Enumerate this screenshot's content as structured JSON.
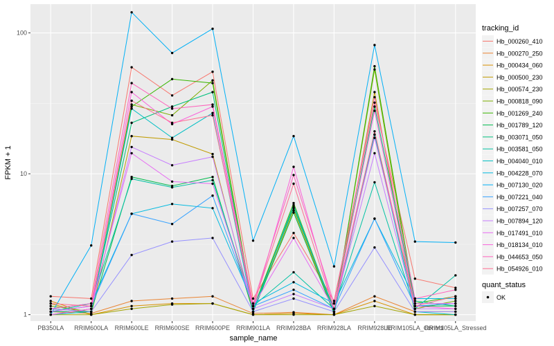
{
  "chart_data": {
    "type": "line",
    "xlabel": "sample_name",
    "ylabel": "FPKM + 1",
    "y_scale": "log10",
    "ylim": [
      0.9,
      160
    ],
    "y_ticks": [
      1,
      10,
      100
    ],
    "y_tick_labels": [
      "1",
      "10",
      "100"
    ],
    "categories": [
      "PB350LA",
      "RRIM600LA",
      "RRIM600LE",
      "RRIM600SE",
      "RRIM600PE",
      "RRIM901LA",
      "RRIM928BA",
      "RRIM928LA",
      "RRIM928LE",
      "RRIM105LA_Control",
      "RRIM105LA_Stressed"
    ],
    "category_labels": [
      "PB350LA",
      "RRIM600LA",
      "RRIM600LE",
      "RRIM600SE",
      "RRIM600PE",
      "RRIM901LA",
      "RRIM928BA",
      "RRIM928LA",
      "RRIM928LE",
      "RRIM105LA_Control",
      "RRIM105LA_Stressed"
    ],
    "legend": {
      "title": "tracking_id",
      "position": "right"
    },
    "series": [
      {
        "name": "Hb_000260_410",
        "color": "#F8766D",
        "values": [
          1.35,
          1.3,
          57,
          36,
          53,
          1.3,
          3.8,
          1.25,
          32,
          1.8,
          1.55
        ]
      },
      {
        "name": "Hb_000270_250",
        "color": "#EA8331",
        "values": [
          1.05,
          1.02,
          1.25,
          1.3,
          1.35,
          1.02,
          1.04,
          1.0,
          1.35,
          1.05,
          1.05
        ]
      },
      {
        "name": "Hb_000434_060",
        "color": "#D89000",
        "values": [
          1.25,
          1.0,
          1.15,
          1.2,
          1.2,
          1.0,
          1.02,
          1.0,
          1.25,
          1.0,
          1.0
        ]
      },
      {
        "name": "Hb_000500_230",
        "color": "#C09B00",
        "values": [
          1.2,
          1.0,
          18.5,
          17.5,
          13.8,
          1.05,
          5.5,
          1.05,
          38,
          1.0,
          1.0
        ]
      },
      {
        "name": "Hb_000574_230",
        "color": "#A3A500",
        "values": [
          1.0,
          1.0,
          1.1,
          1.18,
          1.2,
          1.0,
          1.0,
          1.0,
          1.15,
          1.0,
          1.0
        ]
      },
      {
        "name": "Hb_000818_090",
        "color": "#7CAE00",
        "values": [
          1.15,
          1.05,
          31,
          26,
          46,
          1.1,
          5.8,
          1.05,
          55,
          1.1,
          1.25
        ]
      },
      {
        "name": "Hb_001269_240",
        "color": "#39B600",
        "values": [
          1.1,
          1.05,
          30,
          47,
          44,
          1.1,
          6.2,
          1.05,
          58,
          1.2,
          1.35
        ]
      },
      {
        "name": "Hb_001789_120",
        "color": "#00BB4E",
        "values": [
          1.05,
          1.05,
          9.5,
          8.2,
          9.5,
          1.05,
          5.3,
          1.02,
          19,
          1.15,
          1.15
        ]
      },
      {
        "name": "Hb_003071_050",
        "color": "#00BF7D",
        "values": [
          1.0,
          1.1,
          23,
          30,
          38,
          1.1,
          5.7,
          1.1,
          30,
          1.25,
          1.15
        ]
      },
      {
        "name": "Hb_003581_050",
        "color": "#00C1A3",
        "values": [
          1.05,
          1.2,
          9.2,
          8.0,
          9.0,
          1.15,
          2.0,
          1.1,
          8.7,
          1.1,
          1.9
        ]
      },
      {
        "name": "Hb_004040_010",
        "color": "#00BFC4",
        "values": [
          1.0,
          1.05,
          29,
          18,
          27,
          1.05,
          6.0,
          1.05,
          19,
          1.05,
          1.0
        ]
      },
      {
        "name": "Hb_004228_070",
        "color": "#00BAE0",
        "values": [
          1.1,
          1.2,
          5.2,
          6.1,
          5.7,
          1.2,
          1.7,
          1.2,
          4.8,
          1.3,
          1.3
        ]
      },
      {
        "name": "Hb_007130_020",
        "color": "#00B0F6",
        "values": [
          1.0,
          3.1,
          140,
          72,
          107,
          3.35,
          18.5,
          2.2,
          82,
          3.3,
          3.25
        ]
      },
      {
        "name": "Hb_007221_040",
        "color": "#35A2FF",
        "values": [
          1.05,
          1.15,
          5.2,
          4.4,
          7.0,
          1.15,
          1.5,
          1.1,
          4.8,
          1.15,
          1.2
        ]
      },
      {
        "name": "Hb_007257_070",
        "color": "#9590FF",
        "values": [
          1.1,
          1.05,
          2.65,
          3.3,
          3.5,
          1.05,
          1.3,
          1.05,
          3.0,
          1.05,
          1.05
        ]
      },
      {
        "name": "Hb_007894_120",
        "color": "#C77CFF",
        "values": [
          1.0,
          1.1,
          15.5,
          11.5,
          13.2,
          1.1,
          1.4,
          1.1,
          14,
          1.1,
          1.1
        ]
      },
      {
        "name": "Hb_017491_010",
        "color": "#E76BF3",
        "values": [
          1.05,
          1.15,
          14,
          8.8,
          8.5,
          1.15,
          3.5,
          1.1,
          18,
          1.2,
          1.2
        ]
      },
      {
        "name": "Hb_018134_010",
        "color": "#FA62DB",
        "values": [
          1.0,
          1.1,
          38,
          22.5,
          30,
          1.1,
          11.2,
          1.1,
          28,
          1.15,
          1.1
        ]
      },
      {
        "name": "Hb_044653_050",
        "color": "#FF62BC",
        "values": [
          1.1,
          1.2,
          44,
          29,
          31,
          1.2,
          9.8,
          1.2,
          35,
          1.3,
          1.5
        ]
      },
      {
        "name": "Hb_054926_010",
        "color": "#FF6C91",
        "values": [
          1.2,
          1.15,
          33,
          23,
          26,
          1.15,
          8.5,
          1.1,
          20,
          1.15,
          1.35
        ]
      }
    ],
    "point_legend": {
      "title": "quant_status",
      "label": "OK"
    }
  }
}
